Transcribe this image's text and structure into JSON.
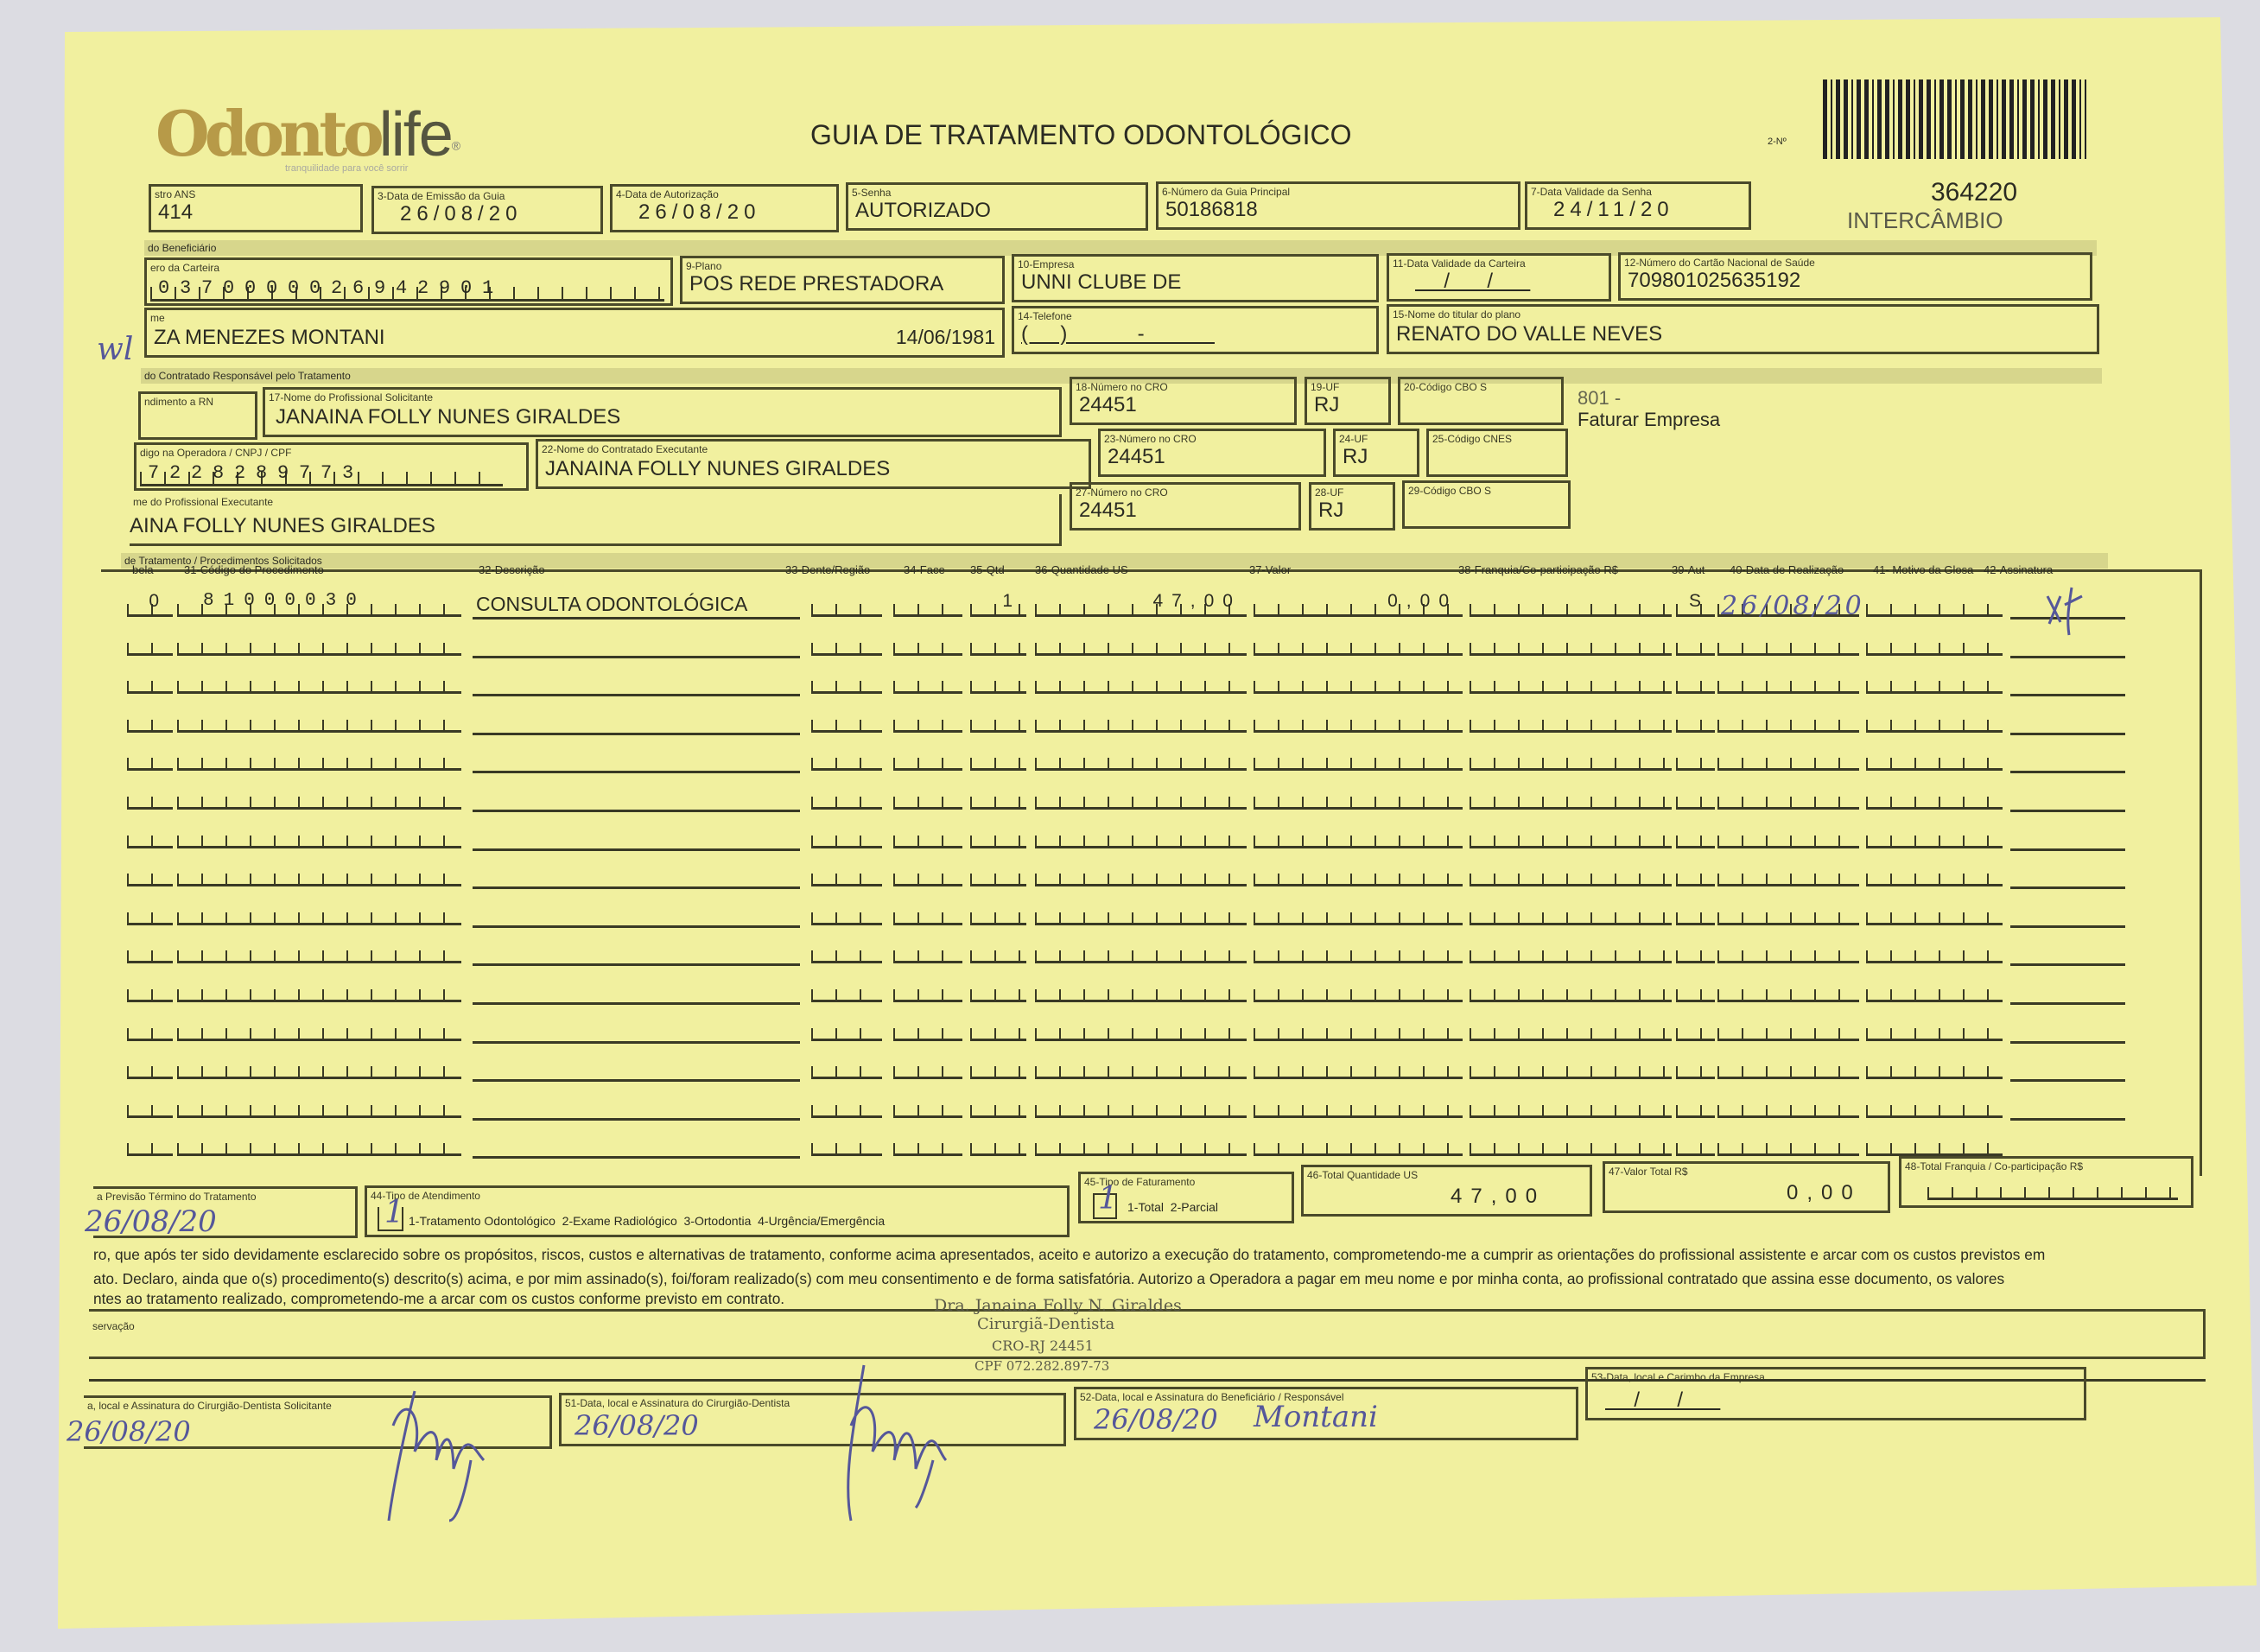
{
  "logo": {
    "text": "Odontolife",
    "tagline": "tranquilidade para você sorrir"
  },
  "title": "GUIA DE TRATAMENTO ODONTOLÓGICO",
  "guide_number_label": "2-Nº",
  "guide_number": "364220",
  "guide_type": "INTERCÂMBIO",
  "header_fields": {
    "ans": {
      "label": "stro ANS",
      "value": "414"
    },
    "emission_date": {
      "label": "3-Data de Emissão da Guia",
      "value": "26/08/20"
    },
    "authorization_date": {
      "label": "4-Data de Autorização",
      "value": "26/08/20"
    },
    "password": {
      "label": "5-Senha",
      "value": "AUTORIZADO"
    },
    "main_guide_number": {
      "label": "6-Número da Guia Principal",
      "value": "50186818"
    },
    "password_validity": {
      "label": "7-Data Validade da Senha",
      "value": "24/11/20"
    }
  },
  "beneficiary": {
    "section": "do Beneficiário",
    "card_number": {
      "label": "ero da Carteira",
      "value": "0370000026942901"
    },
    "plan": {
      "label": "9-Plano",
      "value": "POS REDE PRESTADORA"
    },
    "company": {
      "label": "10-Empresa",
      "value": "UNNI CLUBE DE"
    },
    "card_validity": {
      "label": "11-Data Validade da Carteira",
      "value": "  /  /  "
    },
    "sus_card": {
      "label": "12-Número do Cartão Nacional de Saúde",
      "value": "709801025635192"
    },
    "name": {
      "label": "me",
      "value": "ZA MENEZES MONTANI",
      "birth_date": "14/06/1981"
    },
    "phone": {
      "label": "14-Telefone",
      "value": "(  )     -     "
    },
    "holder": {
      "label": "15-Nome do titular do plano",
      "value": "RENATO DO VALLE NEVES"
    },
    "handwritten_mark": "wl"
  },
  "contractor": {
    "section": "do Contratado Responsável pelo Tratamento",
    "rn": {
      "label": "ndimento a RN"
    },
    "requesting_professional": {
      "label": "17-Nome do Profissional Solicitante",
      "value": "JANAINA FOLLY NUNES GIRALDES"
    },
    "cro_18": {
      "label": "18-Número no CRO",
      "value": "24451"
    },
    "uf_19": {
      "label": "19-UF",
      "value": "RJ"
    },
    "cbo_20": {
      "label": "20-Código CBO S",
      "value": ""
    },
    "billing_note": {
      "code": "801 -",
      "text": "Faturar Empresa"
    },
    "operator_code": {
      "label": "digo na Operadora / CNPJ / CPF",
      "value": "7228289773"
    },
    "executing_contractor": {
      "label": "22-Nome do Contratado Executante",
      "value": "JANAINA FOLLY NUNES GIRALDES"
    },
    "cro_23": {
      "label": "23-Número no CRO",
      "value": "24451"
    },
    "uf_24": {
      "label": "24-UF",
      "value": "RJ"
    },
    "cnes_25": {
      "label": "25-Código CNES",
      "value": ""
    },
    "executing_professional": {
      "label": "me do Profissional Executante",
      "value": "AINA FOLLY NUNES GIRALDES"
    },
    "cro_27": {
      "label": "27-Número no CRO",
      "value": "24451"
    },
    "uf_28": {
      "label": "28-UF",
      "value": "RJ"
    },
    "cbo_29": {
      "label": "29-Código CBO S",
      "value": ""
    }
  },
  "procedures": {
    "section": "de Tratamento / Procedimentos Solicitados",
    "columns": [
      "bela",
      "31-Código do Procedimento",
      "32-Descrição",
      "33-Dente/Região",
      "34-Face",
      "35-Qtd",
      "36-Quantidade US",
      "37-Valor",
      "38-Franquia/Co-participação R$",
      "39-Aut",
      "40-Data de Realização",
      "41- Motivo da Glosa",
      "42-Assinatura"
    ],
    "rows": [
      {
        "table": "0",
        "code": "81000030",
        "description": "CONSULTA ODONTOLÓGICA",
        "tooth": "",
        "face": "",
        "qty": "1",
        "us": "47,00",
        "value": "0,00",
        "copay": "",
        "aut": "S",
        "date": "26/08/20",
        "gloss": "",
        "signature": "x4"
      }
    ],
    "empty_rows": 14
  },
  "totals": {
    "end_forecast": {
      "label": "a Previsão Término do Tratamento",
      "value": "26/08/20"
    },
    "attendance_type": {
      "label": "44-Tipo de Atendimento",
      "value": "1",
      "options": "1-Tratamento Odontológico  2-Exame Radiológico  3-Ortodontia  4-Urgência/Emergência"
    },
    "billing_type": {
      "label": "45-Tipo de Faturamento",
      "value": "1",
      "options": "1-Total  2-Parcial"
    },
    "total_us": {
      "label": "46-Total Quantidade US",
      "value": "47,00"
    },
    "total_value": {
      "label": "47-Valor Total R$",
      "value": "0,00"
    },
    "total_copay": {
      "label": "48-Total Franquia / Co-participação R$",
      "value": ""
    }
  },
  "declaration": [
    "ro, que após ter sido devidamente esclarecido sobre os propósitos, riscos, custos e alternativas de tratamento, conforme acima apresentados, aceito e autorizo a execução do tratamento, comprometendo-me a cumprir as orientações do profissional assistente e arcar com os custos previstos em",
    "ato. Declaro, ainda que o(s) procedimento(s) descrito(s) acima, e por mim assinado(s), foi/foram realizado(s) com meu consentimento e de forma satisfatória. Autorizo a Operadora a pagar em meu nome e por minha conta, ao profissional contratado que assina esse documento, os valores",
    "ntes ao tratamento realizado, comprometendo-me a arcar com os custos conforme previsto em contrato."
  ],
  "observation": {
    "label": "servação"
  },
  "stamp": {
    "name": "Dra. Janaina Folly N. Giraldes",
    "title": "Cirurgiã-Dentista",
    "cro": "CRO-RJ 24451",
    "cpf": "CPF 072.282.897-73"
  },
  "signatures": {
    "requesting": {
      "label": "a, local e Assinatura do Cirurgião-Dentista Solicitante",
      "date": "26/08/20",
      "signature": "Folly"
    },
    "dentist": {
      "label": "51-Data, local e Assinatura do Cirurgião-Dentista",
      "date": "26/08/20",
      "signature": "Folly"
    },
    "beneficiary": {
      "label": "52-Data, local e Assinatura do Beneficiário / Responsável",
      "date": "26/08/20",
      "signature": "Montani"
    },
    "company": {
      "label": "53-Data, local e Carimbo da Empresa",
      "date": "  /  /  "
    }
  }
}
